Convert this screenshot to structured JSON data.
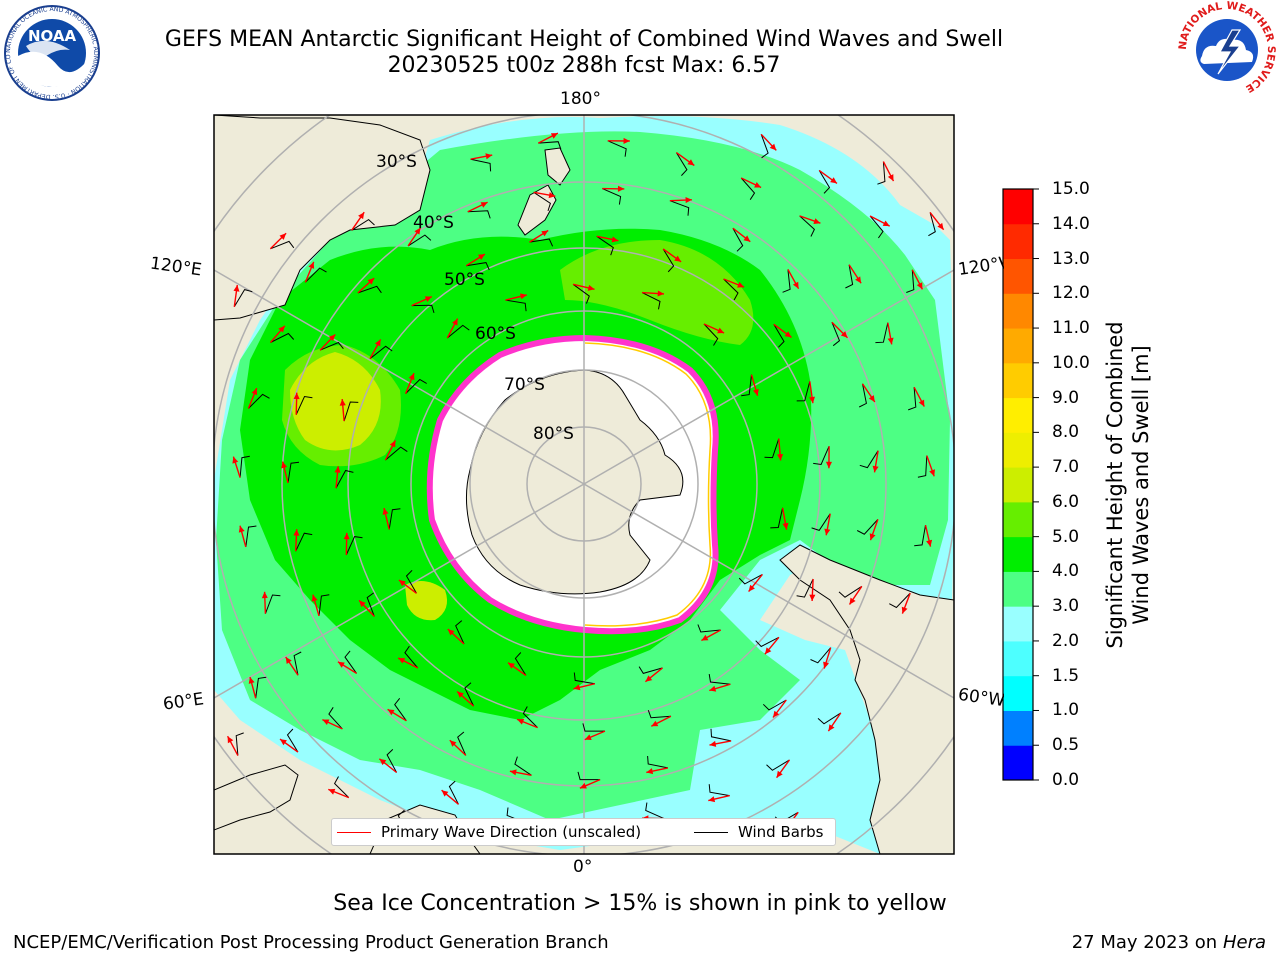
{
  "header": {
    "title_line1": "GEFS MEAN Antarctic Significant Height of Combined Wind Waves and Swell",
    "title_line2": "20230525 t00z 288h fcst   Max: 6.57"
  },
  "logos": {
    "noaa_text": "NOAA",
    "noaa_ring_text": "NATIONAL OCEANIC AND ATMOSPHERIC ADMINISTRATION · U.S. DEPARTMENT OF COMMERCE",
    "nws_ring_text": "NATIONAL WEATHER SERVICE"
  },
  "map": {
    "projection": "south polar stereographic",
    "longitude_labels": {
      "top": "180°",
      "bottom": "0°",
      "upper_left": "120°E",
      "lower_left": "60°E",
      "upper_right": "120°W",
      "lower_right": "60°W"
    },
    "latitude_labels": [
      "30°S",
      "40°S",
      "50°S",
      "60°S",
      "70°S",
      "80°S"
    ],
    "colors": {
      "land": "#eeebd9",
      "ocean_default": "#4dff84",
      "grid": "#b0b0b0",
      "wave_arrow": "#ff0000",
      "wind_barb": "#000000",
      "sea_ice_edge": "#ff33cc",
      "sea_ice_edge_yellow": "#ffcc00"
    }
  },
  "colorbar": {
    "label_line1": "Significant Height of Combined",
    "label_line2": "Wind Waves and Swell [m]",
    "ticks": [
      "0.0",
      "0.5",
      "1.0",
      "1.5",
      "2.0",
      "3.0",
      "4.0",
      "5.0",
      "6.0",
      "7.0",
      "8.0",
      "9.0",
      "10.0",
      "11.0",
      "12.0",
      "13.0",
      "14.0",
      "15.0"
    ],
    "colors": [
      "#0000ff",
      "#0080ff",
      "#00ffff",
      "#4dffff",
      "#99ffff",
      "#4dff84",
      "#00ee00",
      "#66ee00",
      "#ccee00",
      "#eeee00",
      "#ffee00",
      "#ffcc00",
      "#ffaa00",
      "#ff8800",
      "#ff5500",
      "#ff2a00",
      "#ff0000"
    ]
  },
  "legend": {
    "primary_wave": "Primary Wave Direction (unscaled)",
    "wind_barbs": "Wind Barbs"
  },
  "footer": {
    "note": "Sea Ice Concentration > 15% is shown in pink to yellow",
    "left": "NCEP/EMC/Verification Post Processing Product Generation Branch",
    "right_date": "27 May 2023 on",
    "right_machine": "Hera"
  }
}
